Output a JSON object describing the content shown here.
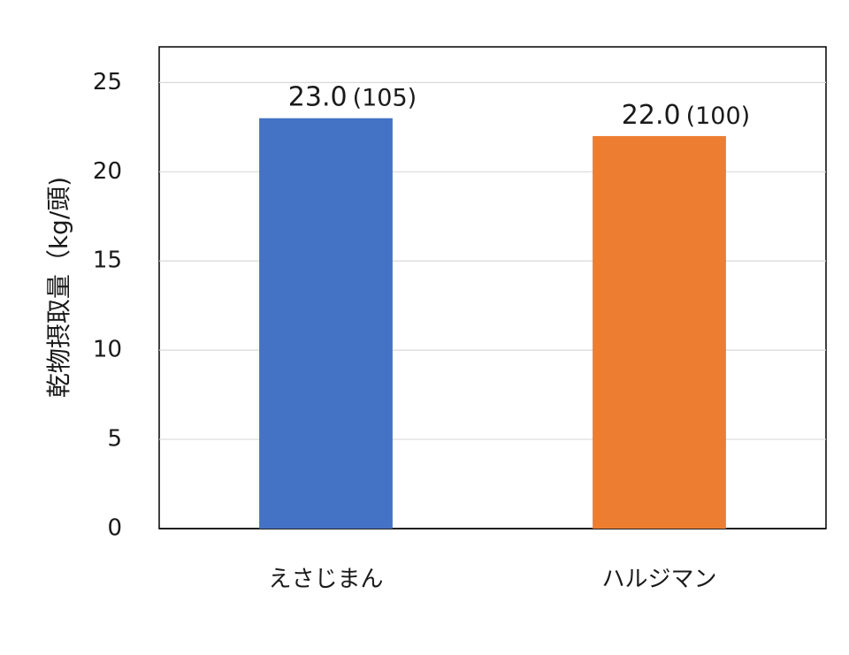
{
  "chart_data": {
    "type": "bar",
    "title": "",
    "xlabel": "",
    "ylabel": "乾物摂取量（kg/頭)",
    "ylim": [
      0,
      27
    ],
    "yticks": [
      0,
      5,
      10,
      15,
      20,
      25
    ],
    "grid": true,
    "legend": "none",
    "categories": [
      "えさじまん",
      "ハルジマン"
    ],
    "values": [
      23.0,
      22.0
    ],
    "value_labels": [
      "23.0",
      "22.0"
    ],
    "index_labels": [
      "(105)",
      "(100)"
    ],
    "colors": [
      "#4472C4",
      "#ED7D31"
    ]
  },
  "style": {
    "gridline_color": "#d9d9d9",
    "axis_color": "#000000",
    "frame_color": "#000000"
  }
}
